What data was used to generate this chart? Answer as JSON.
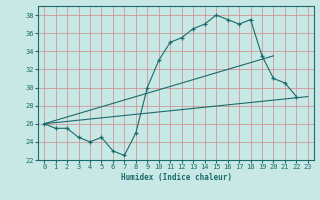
{
  "xlabel": "Humidex (Indice chaleur)",
  "xlim": [
    -0.5,
    23.5
  ],
  "ylim": [
    22,
    39
  ],
  "yticks": [
    22,
    24,
    26,
    28,
    30,
    32,
    34,
    36,
    38
  ],
  "xticks": [
    0,
    1,
    2,
    3,
    4,
    5,
    6,
    7,
    8,
    9,
    10,
    11,
    12,
    13,
    14,
    15,
    16,
    17,
    18,
    19,
    20,
    21,
    22,
    23
  ],
  "bg_color": "#c8e8e5",
  "line_color": "#1a6b6b",
  "grid_color": "#d08888",
  "zigzag_x": [
    0,
    1,
    2,
    3,
    4,
    5,
    6,
    7,
    8,
    9,
    10,
    11,
    12,
    13,
    14,
    15,
    16,
    17,
    18,
    19,
    20,
    21,
    22
  ],
  "zigzag_y": [
    26.0,
    25.5,
    25.5,
    24.5,
    24.0,
    24.5,
    23.0,
    22.5,
    25.0,
    30.0,
    33.0,
    35.0,
    35.5,
    36.5,
    37.0,
    38.0,
    37.5,
    37.0,
    37.5,
    33.5,
    31.0,
    30.5,
    29.0
  ],
  "line1_x": [
    0,
    23
  ],
  "line1_y": [
    26.0,
    29.0
  ],
  "line2_x": [
    0,
    20
  ],
  "line2_y": [
    26.0,
    33.5
  ]
}
